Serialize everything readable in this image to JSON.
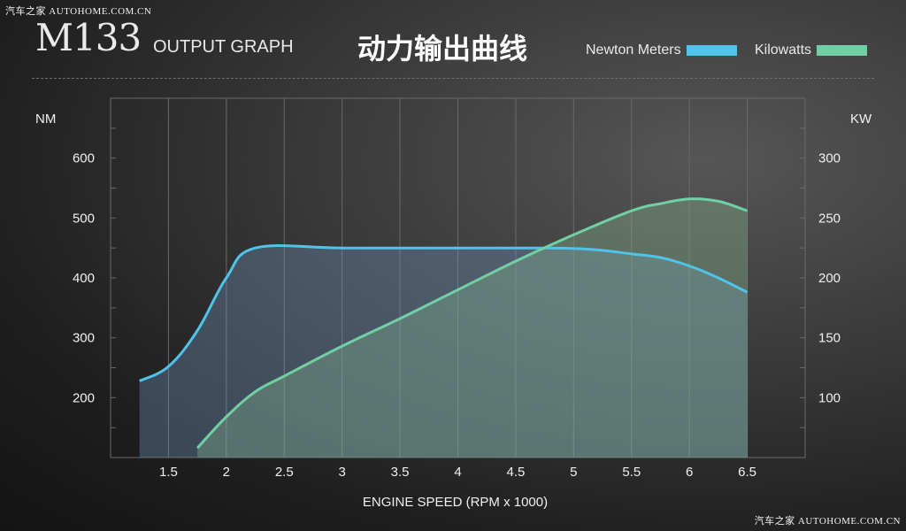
{
  "watermark_top": "汽车之家 AUTOHOME.COM.CN",
  "watermark_bottom": "汽车之家 AUTOHOME.COM.CN",
  "header": {
    "model": "M133",
    "subtitle": "OUTPUT GRAPH",
    "cn_title": "动力输出曲线"
  },
  "legend": {
    "nm_label": "Newton Meters",
    "kw_label": "Kilowatts"
  },
  "colors": {
    "nm": "#4fc3e8",
    "kw": "#72cfa4",
    "grid": "#6a6a6a"
  },
  "chart_data": {
    "type": "line",
    "xlabel": "ENGINE SPEED (RPM x 1000)",
    "x_ticks": [
      "1.5",
      "2",
      "2.5",
      "3",
      "3.5",
      "4",
      "4.5",
      "5",
      "5.5",
      "6",
      "6.5"
    ],
    "xlim": [
      1.0,
      7.0
    ],
    "y_left": {
      "label": "NM",
      "ticks": [
        "200",
        "300",
        "400",
        "500",
        "600"
      ],
      "lim": [
        100,
        700
      ]
    },
    "y_right": {
      "label": "KW",
      "ticks": [
        "100",
        "150",
        "200",
        "250",
        "300"
      ],
      "lim": [
        50,
        350
      ]
    },
    "grid": true,
    "legend_position": "top-right",
    "series": [
      {
        "name": "Newton Meters",
        "axis": "left",
        "x": [
          1.25,
          1.5,
          1.75,
          2.0,
          2.25,
          3.0,
          4.0,
          4.75,
          5.0,
          5.25,
          5.5,
          5.75,
          6.0,
          6.25,
          6.5
        ],
        "y": [
          228,
          252,
          312,
          400,
          450,
          450,
          450,
          450,
          449,
          446,
          440,
          434,
          420,
          400,
          376
        ]
      },
      {
        "name": "Kilowatts",
        "axis": "right",
        "x": [
          1.75,
          2.0,
          2.25,
          2.5,
          3.0,
          3.5,
          4.0,
          4.5,
          5.0,
          5.5,
          5.75,
          6.0,
          6.25,
          6.5
        ],
        "y": [
          58,
          84,
          105,
          118,
          143,
          166,
          190,
          214,
          236,
          256,
          262,
          266,
          264,
          256
        ]
      }
    ]
  }
}
